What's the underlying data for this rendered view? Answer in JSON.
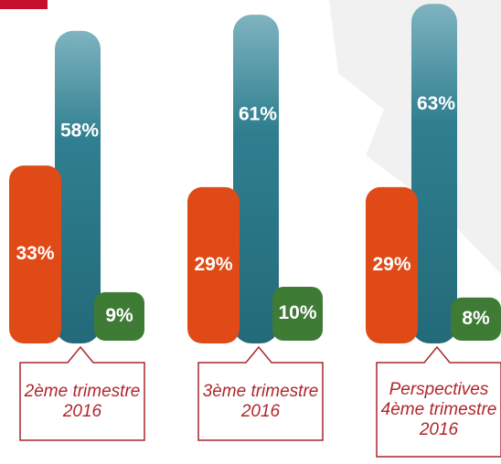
{
  "chart_data": {
    "type": "bar",
    "categories": [
      "2ème trimestre 2016",
      "3ème trimestre 2016",
      "Perspectives 4ème trimestre 2016"
    ],
    "series": [
      {
        "color": "#e04a17",
        "values": [
          33,
          29,
          29
        ],
        "value_labels": [
          "33%",
          "29%",
          "29%"
        ]
      },
      {
        "color": "#2f7f90",
        "values": [
          58,
          61,
          63
        ],
        "value_labels": [
          "58%",
          "61%",
          "63%"
        ]
      },
      {
        "color": "#3e7b35",
        "values": [
          9,
          10,
          8
        ],
        "value_labels": [
          "9%",
          "10%",
          "8%"
        ]
      }
    ]
  }
}
